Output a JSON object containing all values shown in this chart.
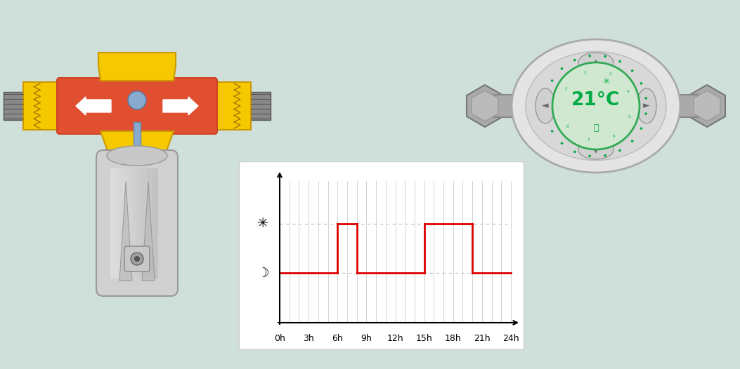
{
  "bg_color": "#cfe0da",
  "chart_bg": "#ffffff",
  "red_line_color": "#dd0000",
  "dashed_color": "#aaaaaa",
  "x_labels": [
    "0h",
    "3h",
    "6h",
    "9h",
    "12h",
    "15h",
    "18h",
    "21h",
    "24h"
  ],
  "valve_color_yellow": "#f5c800",
  "valve_color_red": "#e05030",
  "valve_color_gray": "#999999",
  "valve_color_blue": "#88aacc",
  "thermo_color_green": "#00aa44",
  "thermo_display_bg": "#c8e8c0"
}
